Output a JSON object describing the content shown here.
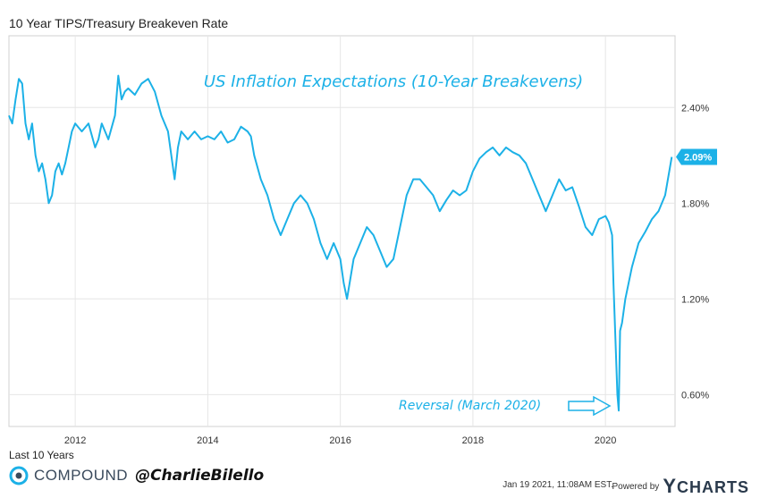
{
  "header": {
    "title": "10 Year TIPS/Treasury Breakeven Rate"
  },
  "footer": {
    "range": "Last 10 Years",
    "brand": "COMPOUND",
    "handle": "@CharlieBilello",
    "timestamp": "Jan 19 2021, 11:08AM EST.",
    "powered_by": "Powered by",
    "ycharts_y": "Y",
    "ycharts_rest": "CHARTS"
  },
  "colors": {
    "line": "#1cb1e7",
    "grid": "#e6e6e6",
    "text": "#333333"
  },
  "chart_data": {
    "type": "line",
    "title": "US Inflation Expectations (10-Year Breakevens)",
    "xlabel": "",
    "ylabel": "",
    "xlim": [
      2011.0,
      2021.05
    ],
    "ylim": [
      0.4,
      2.85
    ],
    "x_ticks": [
      2012,
      2014,
      2016,
      2018,
      2020
    ],
    "x_tick_labels": [
      "2012",
      "2014",
      "2016",
      "2018",
      "2020"
    ],
    "y_ticks": [
      0.6,
      1.2,
      1.8,
      2.4
    ],
    "y_tick_labels": [
      "0.60%",
      "1.20%",
      "1.80%",
      "2.40%"
    ],
    "grid": true,
    "last_value_label": "2.09%",
    "annotation": {
      "text": "Reversal (March 2020)",
      "x": 2020.2,
      "y": 0.5
    },
    "series": [
      {
        "x": [
          2011.0,
          2011.05,
          2011.1,
          2011.15,
          2011.2,
          2011.25,
          2011.3,
          2011.35,
          2011.4,
          2011.45,
          2011.5,
          2011.55,
          2011.6,
          2011.65,
          2011.7,
          2011.75,
          2011.8,
          2011.85,
          2011.9,
          2011.95,
          2012.0,
          2012.1,
          2012.2,
          2012.3,
          2012.35,
          2012.4,
          2012.5,
          2012.6,
          2012.65,
          2012.7,
          2012.75,
          2012.8,
          2012.9,
          2013.0,
          2013.1,
          2013.2,
          2013.3,
          2013.4,
          2013.45,
          2013.5,
          2013.55,
          2013.6,
          2013.7,
          2013.8,
          2013.9,
          2014.0,
          2014.1,
          2014.2,
          2014.3,
          2014.4,
          2014.5,
          2014.6,
          2014.65,
          2014.7,
          2014.8,
          2014.9,
          2015.0,
          2015.1,
          2015.2,
          2015.3,
          2015.4,
          2015.5,
          2015.6,
          2015.7,
          2015.8,
          2015.9,
          2016.0,
          2016.05,
          2016.1,
          2016.2,
          2016.3,
          2016.4,
          2016.5,
          2016.6,
          2016.7,
          2016.8,
          2016.9,
          2017.0,
          2017.1,
          2017.2,
          2017.3,
          2017.4,
          2017.5,
          2017.6,
          2017.7,
          2017.8,
          2017.9,
          2018.0,
          2018.1,
          2018.2,
          2018.3,
          2018.4,
          2018.5,
          2018.6,
          2018.7,
          2018.8,
          2018.85,
          2018.9,
          2019.0,
          2019.1,
          2019.2,
          2019.3,
          2019.4,
          2019.5,
          2019.6,
          2019.7,
          2019.8,
          2019.9,
          2020.0,
          2020.05,
          2020.1,
          2020.12,
          2020.15,
          2020.18,
          2020.2,
          2020.22,
          2020.25,
          2020.3,
          2020.4,
          2020.5,
          2020.6,
          2020.7,
          2020.8,
          2020.9,
          2021.0
        ],
        "y": [
          2.35,
          2.3,
          2.45,
          2.58,
          2.55,
          2.3,
          2.2,
          2.3,
          2.1,
          2.0,
          2.05,
          1.95,
          1.8,
          1.85,
          2.0,
          2.05,
          1.98,
          2.05,
          2.15,
          2.25,
          2.3,
          2.25,
          2.3,
          2.15,
          2.2,
          2.3,
          2.2,
          2.35,
          2.6,
          2.45,
          2.5,
          2.52,
          2.48,
          2.55,
          2.58,
          2.5,
          2.35,
          2.25,
          2.1,
          1.95,
          2.15,
          2.25,
          2.2,
          2.25,
          2.2,
          2.22,
          2.2,
          2.25,
          2.18,
          2.2,
          2.28,
          2.25,
          2.22,
          2.1,
          1.95,
          1.85,
          1.7,
          1.6,
          1.7,
          1.8,
          1.85,
          1.8,
          1.7,
          1.55,
          1.45,
          1.55,
          1.45,
          1.3,
          1.2,
          1.45,
          1.55,
          1.65,
          1.6,
          1.5,
          1.4,
          1.45,
          1.65,
          1.85,
          1.95,
          1.95,
          1.9,
          1.85,
          1.75,
          1.82,
          1.88,
          1.85,
          1.88,
          2.0,
          2.08,
          2.12,
          2.15,
          2.1,
          2.15,
          2.12,
          2.1,
          2.05,
          2.0,
          1.95,
          1.85,
          1.75,
          1.85,
          1.95,
          1.88,
          1.9,
          1.78,
          1.65,
          1.6,
          1.7,
          1.72,
          1.68,
          1.6,
          1.3,
          0.95,
          0.6,
          0.5,
          1.0,
          1.05,
          1.2,
          1.4,
          1.55,
          1.62,
          1.7,
          1.75,
          1.85,
          2.09
        ]
      }
    ]
  }
}
